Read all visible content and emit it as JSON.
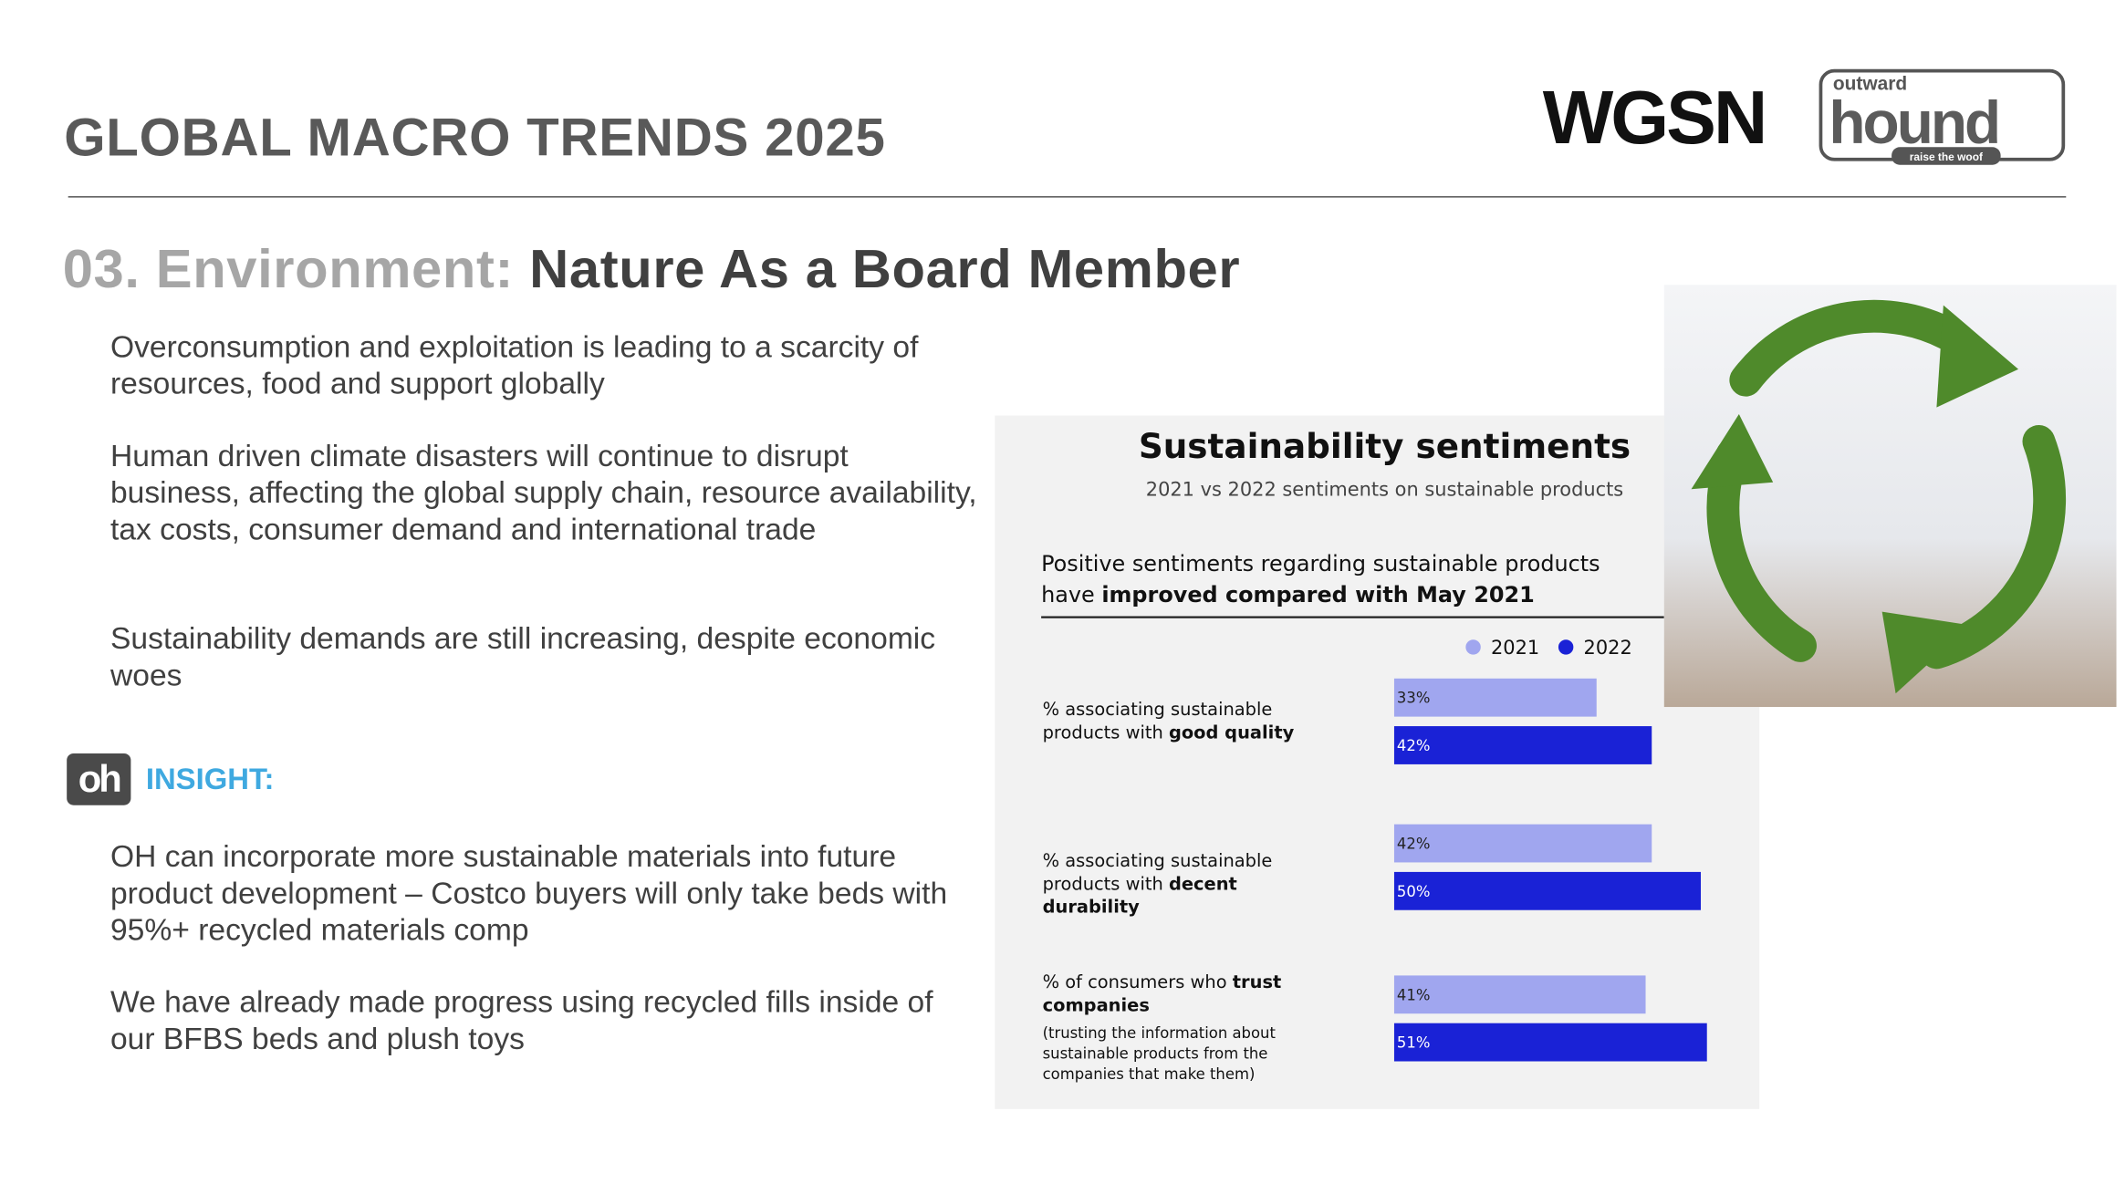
{
  "header": {
    "title": "GLOBAL MACRO TRENDS 2025",
    "logos": {
      "wgsn": "WGSN",
      "brand_top": "outward",
      "brand_main": "hound",
      "brand_tag": "raise the woof"
    }
  },
  "section": {
    "number": "03. Environment:",
    "title": "Nature As a Board Member"
  },
  "paragraphs": [
    "Overconsumption and exploitation is leading to a scarcity of resources, food and support globally",
    "Human driven climate disasters will continue to disrupt business, affecting the global supply chain, resource availability, tax costs, consumer demand and international trade",
    "Sustainability demands are still increasing, despite economic woes"
  ],
  "insight": {
    "icon": "oh",
    "label": "INSIGHT:",
    "paragraphs": [
      "OH can incorporate more sustainable materials into future product development – Costco buyers will only take beds with 95%+ recycled materials comp",
      "We have already made progress using recycled fills inside of our BFBS beds and plush toys"
    ]
  },
  "chart_data": {
    "type": "bar",
    "orientation": "horizontal",
    "title": "Sustainability sentiments",
    "subtitle": "2021 vs 2022 sentiments on sustainable products",
    "heading": [
      "Positive sentiments regarding sustainable products have ",
      "improved compared with May 2021"
    ],
    "categories": [
      [
        "% associating sustainable products with ",
        "good quality"
      ],
      [
        "% associating sustainable products with ",
        "decent durability"
      ],
      [
        "% of consumers who ",
        "trust companies",
        "(trusting the information about sustainable products from the companies that make them)"
      ]
    ],
    "series": [
      {
        "name": "2021",
        "color": "#a0a6ef",
        "values": [
          33,
          42,
          41
        ],
        "value_labels": [
          "33%",
          "42%",
          "41%"
        ]
      },
      {
        "name": "2022",
        "color": "#1a22d6",
        "values": [
          42,
          50,
          51
        ],
        "value_labels": [
          "42%",
          "50%",
          "51%"
        ]
      }
    ]
  }
}
